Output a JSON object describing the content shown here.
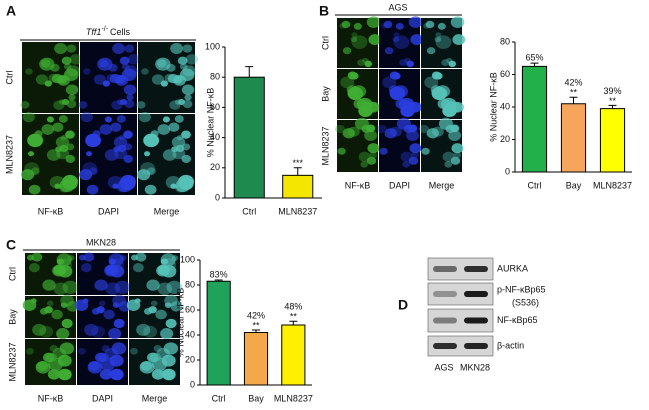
{
  "panel_a": {
    "letter": "A",
    "title_gene": "Tff1",
    "title_genotype": "-/-",
    "title_rest": "Cells",
    "rows": [
      "Ctrl",
      "MLN8237"
    ],
    "columns": [
      "NF-κB",
      "DAPI",
      "Merge"
    ]
  },
  "panel_b": {
    "letter": "B",
    "title": "AGS",
    "rows": [
      "Ctrl",
      "Bay",
      "MLN8237"
    ],
    "columns": [
      "NF-κB",
      "DAPI",
      "Merge"
    ]
  },
  "panel_c": {
    "letter": "C",
    "title": "MKN28",
    "rows": [
      "Ctrl",
      "Bay",
      "MLN8237"
    ],
    "columns": [
      "NF-κB",
      "DAPI",
      "Merge"
    ]
  },
  "panel_d": {
    "letter": "D",
    "rows": [
      "AURKA",
      "p-NF-κBp65",
      "NF-κBp65",
      "β-actin"
    ],
    "site": "(S536)",
    "lanes": [
      "AGS",
      "MKN28"
    ]
  },
  "chart_data": [
    {
      "type": "bar",
      "y_label": "% Nuclear NF-κB",
      "categories": [
        "Ctrl",
        "MLN8237"
      ],
      "values": [
        80,
        15
      ],
      "errors": [
        7,
        5
      ],
      "annotations": [
        null,
        "***"
      ],
      "colors": [
        "#1e8a4e",
        "#f4e600"
      ],
      "ylim": [
        0,
        100
      ],
      "yticks": [
        0,
        20,
        40,
        60,
        80,
        100
      ]
    },
    {
      "type": "bar",
      "y_label": "% Nuclear NF-κB",
      "categories": [
        "Ctrl",
        "Bay",
        "MLN8237"
      ],
      "values": [
        65,
        42,
        39
      ],
      "value_labels": [
        "65%",
        "42%",
        "39%"
      ],
      "errors": [
        2,
        4,
        2
      ],
      "annotations": [
        null,
        "**",
        "**"
      ],
      "colors": [
        "#22b04a",
        "#f6a65c",
        "#ffff00"
      ],
      "ylim": [
        0,
        80
      ],
      "yticks": [
        0,
        20,
        40,
        60,
        80
      ]
    },
    {
      "type": "bar",
      "y_label": "% Nuclear NF-κB",
      "categories": [
        "Ctrl",
        "Bay",
        "MLN8237"
      ],
      "values": [
        83,
        42,
        48
      ],
      "value_labels": [
        "83%",
        "42%",
        "48%"
      ],
      "errors": [
        1,
        2,
        3
      ],
      "annotations": [
        null,
        "**",
        "**"
      ],
      "colors": [
        "#1fa25a",
        "#f4a84a",
        "#ffef00"
      ],
      "ylim": [
        0,
        100
      ],
      "yticks": [
        0,
        20,
        40,
        60,
        80,
        100
      ]
    }
  ]
}
